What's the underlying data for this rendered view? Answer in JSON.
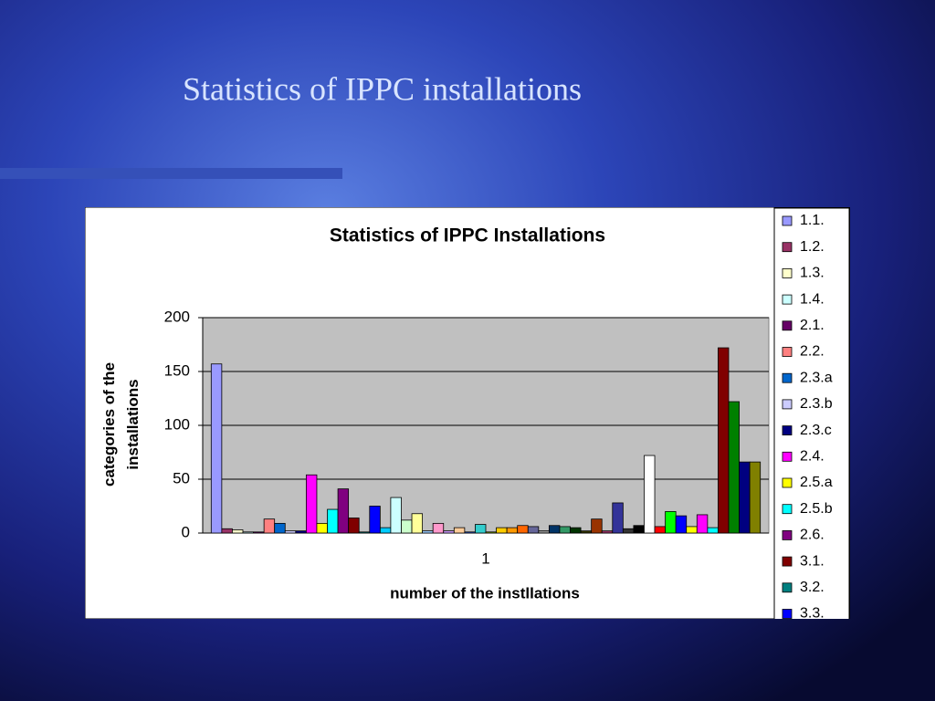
{
  "slide_title": "Statistics of IPPC installations",
  "chart_data": {
    "type": "bar",
    "title": "Statistics of IPPC Installations",
    "y_label": "categories of the installations",
    "x_label": "number of the instllations",
    "categories": [
      "1"
    ],
    "ylim": [
      0,
      200
    ],
    "yticks": [
      0,
      50,
      100,
      150,
      200
    ],
    "grid": true,
    "legend": "right",
    "series": [
      {
        "name": "1.1.",
        "color": "#9999FF",
        "values": [
          157
        ]
      },
      {
        "name": "1.2.",
        "color": "#993366",
        "values": [
          4
        ]
      },
      {
        "name": "1.3.",
        "color": "#FFFFCC",
        "values": [
          3
        ]
      },
      {
        "name": "1.4.",
        "color": "#CCFFFF",
        "values": [
          1
        ]
      },
      {
        "name": "2.1.",
        "color": "#660066",
        "values": [
          1
        ]
      },
      {
        "name": "2.2.",
        "color": "#FF8080",
        "values": [
          13
        ]
      },
      {
        "name": "2.3.a",
        "color": "#0066CC",
        "values": [
          9
        ]
      },
      {
        "name": "2.3.b",
        "color": "#CCCCFF",
        "values": [
          2
        ]
      },
      {
        "name": "2.3.c",
        "color": "#000080",
        "values": [
          2
        ]
      },
      {
        "name": "2.4.",
        "color": "#FF00FF",
        "values": [
          54
        ]
      },
      {
        "name": "2.5.a",
        "color": "#FFFF00",
        "values": [
          9
        ]
      },
      {
        "name": "2.5.b",
        "color": "#00FFFF",
        "values": [
          22
        ]
      },
      {
        "name": "2.6.",
        "color": "#800080",
        "values": [
          41
        ]
      },
      {
        "name": "3.1.",
        "color": "#800000",
        "values": [
          14
        ]
      },
      {
        "name": "3.2.",
        "color": "#008080",
        "values": [
          1
        ]
      },
      {
        "name": "3.3.",
        "color": "#0000FF",
        "values": [
          25
        ]
      },
      {
        "name": null,
        "color": "#00CCFF",
        "values": [
          5
        ]
      },
      {
        "name": null,
        "color": "#CCFFFF",
        "values": [
          33
        ]
      },
      {
        "name": null,
        "color": "#CCFFCC",
        "values": [
          12
        ]
      },
      {
        "name": null,
        "color": "#FFFF99",
        "values": [
          18
        ]
      },
      {
        "name": null,
        "color": "#99CCFF",
        "values": [
          2
        ]
      },
      {
        "name": null,
        "color": "#FF99CC",
        "values": [
          9
        ]
      },
      {
        "name": null,
        "color": "#CC99FF",
        "values": [
          2
        ]
      },
      {
        "name": null,
        "color": "#FFCC99",
        "values": [
          5
        ]
      },
      {
        "name": null,
        "color": "#3366FF",
        "values": [
          1
        ]
      },
      {
        "name": null,
        "color": "#33CCCC",
        "values": [
          8
        ]
      },
      {
        "name": null,
        "color": "#99CC00",
        "values": [
          1
        ]
      },
      {
        "name": null,
        "color": "#FFCC00",
        "values": [
          5
        ]
      },
      {
        "name": null,
        "color": "#FF9900",
        "values": [
          5
        ]
      },
      {
        "name": null,
        "color": "#FF6600",
        "values": [
          7
        ]
      },
      {
        "name": null,
        "color": "#666699",
        "values": [
          6
        ]
      },
      {
        "name": null,
        "color": "#969696",
        "values": [
          2
        ]
      },
      {
        "name": null,
        "color": "#003366",
        "values": [
          7
        ]
      },
      {
        "name": null,
        "color": "#339966",
        "values": [
          6
        ]
      },
      {
        "name": null,
        "color": "#003300",
        "values": [
          5
        ]
      },
      {
        "name": null,
        "color": "#333300",
        "values": [
          2
        ]
      },
      {
        "name": null,
        "color": "#993300",
        "values": [
          13
        ]
      },
      {
        "name": null,
        "color": "#993366",
        "values": [
          2
        ]
      },
      {
        "name": null,
        "color": "#333399",
        "values": [
          28
        ]
      },
      {
        "name": null,
        "color": "#333333",
        "values": [
          4
        ]
      },
      {
        "name": null,
        "color": "#000000",
        "values": [
          7
        ]
      },
      {
        "name": null,
        "color": "#FFFFFF",
        "values": [
          72
        ]
      },
      {
        "name": null,
        "color": "#FF0000",
        "values": [
          6
        ]
      },
      {
        "name": null,
        "color": "#00FF00",
        "values": [
          20
        ]
      },
      {
        "name": null,
        "color": "#0000FF",
        "values": [
          16
        ]
      },
      {
        "name": null,
        "color": "#FFFF00",
        "values": [
          6
        ]
      },
      {
        "name": null,
        "color": "#FF00FF",
        "values": [
          17
        ]
      },
      {
        "name": null,
        "color": "#00FFFF",
        "values": [
          5
        ]
      },
      {
        "name": null,
        "color": "#800000",
        "values": [
          172
        ]
      },
      {
        "name": null,
        "color": "#008000",
        "values": [
          122
        ]
      },
      {
        "name": null,
        "color": "#000080",
        "values": [
          66
        ]
      },
      {
        "name": null,
        "color": "#808000",
        "values": [
          66
        ]
      }
    ]
  }
}
